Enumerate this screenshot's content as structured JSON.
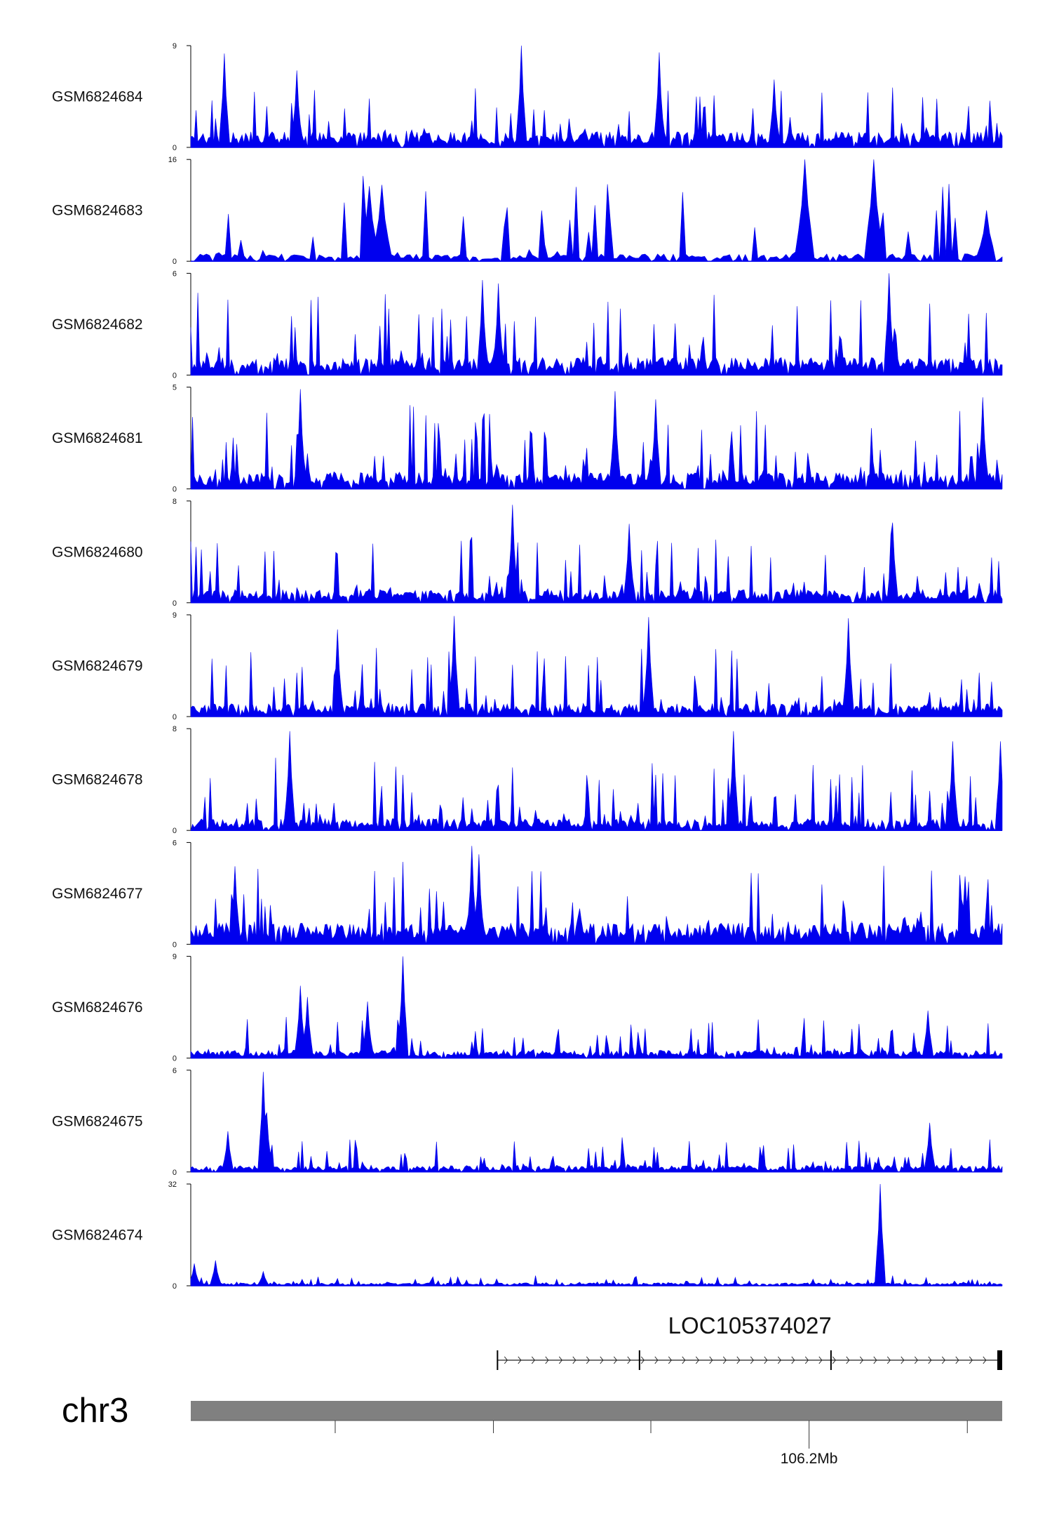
{
  "chart_data": {
    "type": "area",
    "title": "",
    "chromosome": "chr3",
    "genomic_tick_label": "106.2Mb",
    "series_color": "#0000ee",
    "grid": false,
    "tracks": [
      {
        "name": "GSM6824684",
        "ymin": 0,
        "ymax": 9,
        "ymin_label": "0",
        "ymax_label": "9",
        "seed": 11,
        "bins": 460,
        "base": 1.2,
        "spread": 3.0,
        "gap_rate": 0.05,
        "peaks": [
          [
            0.042,
            8.3
          ],
          [
            0.13,
            6.8
          ],
          [
            0.408,
            9.0
          ],
          [
            0.578,
            8.4
          ],
          [
            0.72,
            6.0
          ]
        ]
      },
      {
        "name": "GSM6824683",
        "ymin": 0,
        "ymax": 16,
        "ymin_label": "0",
        "ymax_label": "16",
        "seed": 23,
        "bins": 260,
        "base": 1.0,
        "spread": 8.0,
        "gap_rate": 0.11,
        "peaks": [
          [
            0.22,
            11.8
          ],
          [
            0.236,
            12.0
          ],
          [
            0.757,
            16.0
          ],
          [
            0.84,
            16.0
          ],
          [
            0.98,
            8.0
          ]
        ]
      },
      {
        "name": "GSM6824682",
        "ymin": 0,
        "ymax": 6,
        "ymin_label": "0",
        "ymax_label": "6",
        "seed": 37,
        "bins": 460,
        "base": 0.9,
        "spread": 2.6,
        "gap_rate": 0.04,
        "peaks": [
          [
            0.36,
            5.6
          ],
          [
            0.378,
            5.4
          ],
          [
            0.86,
            6.0
          ]
        ]
      },
      {
        "name": "GSM6824681",
        "ymin": 0,
        "ymax": 5,
        "ymin_label": "0",
        "ymax_label": "5",
        "seed": 41,
        "bins": 460,
        "base": 0.7,
        "spread": 2.2,
        "gap_rate": 0.05,
        "peaks": [
          [
            0.134,
            4.9
          ],
          [
            0.522,
            4.8
          ],
          [
            0.572,
            4.4
          ],
          [
            0.976,
            4.5
          ]
        ]
      },
      {
        "name": "GSM6824680",
        "ymin": 0,
        "ymax": 8,
        "ymin_label": "0",
        "ymax_label": "8",
        "seed": 53,
        "bins": 460,
        "base": 0.9,
        "spread": 3.0,
        "gap_rate": 0.05,
        "peaks": [
          [
            0.397,
            7.7
          ],
          [
            0.54,
            6.2
          ],
          [
            0.865,
            6.3
          ]
        ]
      },
      {
        "name": "GSM6824679",
        "ymin": 0,
        "ymax": 9,
        "ymin_label": "0",
        "ymax_label": "9",
        "seed": 67,
        "bins": 460,
        "base": 1.0,
        "spread": 3.4,
        "gap_rate": 0.05,
        "peaks": [
          [
            0.18,
            7.7
          ],
          [
            0.325,
            8.9
          ],
          [
            0.564,
            8.8
          ],
          [
            0.81,
            8.7
          ]
        ]
      },
      {
        "name": "GSM6824678",
        "ymin": 0,
        "ymax": 8,
        "ymin_label": "0",
        "ymax_label": "8",
        "seed": 79,
        "bins": 460,
        "base": 0.8,
        "spread": 3.2,
        "gap_rate": 0.05,
        "peaks": [
          [
            0.122,
            7.8
          ],
          [
            0.668,
            7.8
          ],
          [
            0.94,
            7.0
          ],
          [
            0.997,
            7.0
          ]
        ]
      },
      {
        "name": "GSM6824677",
        "ymin": 0,
        "ymax": 6,
        "ymin_label": "0",
        "ymax_label": "6",
        "seed": 83,
        "bins": 460,
        "base": 1.1,
        "spread": 2.4,
        "gap_rate": 0.04,
        "peaks": [
          [
            0.054,
            4.6
          ],
          [
            0.346,
            5.8
          ],
          [
            0.356,
            5.3
          ],
          [
            0.955,
            4.0
          ]
        ]
      },
      {
        "name": "GSM6824676",
        "ymin": 0,
        "ymax": 9,
        "ymin_label": "0",
        "ymax_label": "9",
        "seed": 97,
        "bins": 460,
        "base": 0.6,
        "spread": 1.9,
        "gap_rate": 0.05,
        "peaks": [
          [
            0.135,
            6.4
          ],
          [
            0.143,
            5.4
          ],
          [
            0.217,
            5.0
          ],
          [
            0.262,
            9.0
          ],
          [
            0.908,
            4.2
          ]
        ]
      },
      {
        "name": "GSM6824675",
        "ymin": 0,
        "ymax": 6,
        "ymin_label": "0",
        "ymax_label": "6",
        "seed": 101,
        "bins": 460,
        "base": 0.35,
        "spread": 1.1,
        "gap_rate": 0.05,
        "peaks": [
          [
            0.045,
            2.4
          ],
          [
            0.089,
            5.9
          ],
          [
            0.094,
            3.5
          ],
          [
            0.91,
            2.9
          ]
        ]
      },
      {
        "name": "GSM6824674",
        "ymin": 0,
        "ymax": 32,
        "ymin_label": "0",
        "ymax_label": "32",
        "seed": 113,
        "bins": 460,
        "base": 0.8,
        "spread": 1.6,
        "gap_rate": 0.03,
        "peaks": [
          [
            0.004,
            7.0
          ],
          [
            0.03,
            8.0
          ],
          [
            0.09,
            4.5
          ],
          [
            0.85,
            32.0
          ]
        ]
      }
    ],
    "gene": {
      "name": "LOC105374027",
      "strand": "+",
      "start_frac": 0.378,
      "end_frac": 1.0,
      "exon_fracs": [
        0.378,
        0.553,
        0.789,
        1.0
      ]
    },
    "ideogram": {
      "color": "#808080",
      "tick_fracs": [
        0.178,
        0.373,
        0.567,
        0.762,
        0.957
      ],
      "labeled_tick_frac": 0.762
    }
  }
}
